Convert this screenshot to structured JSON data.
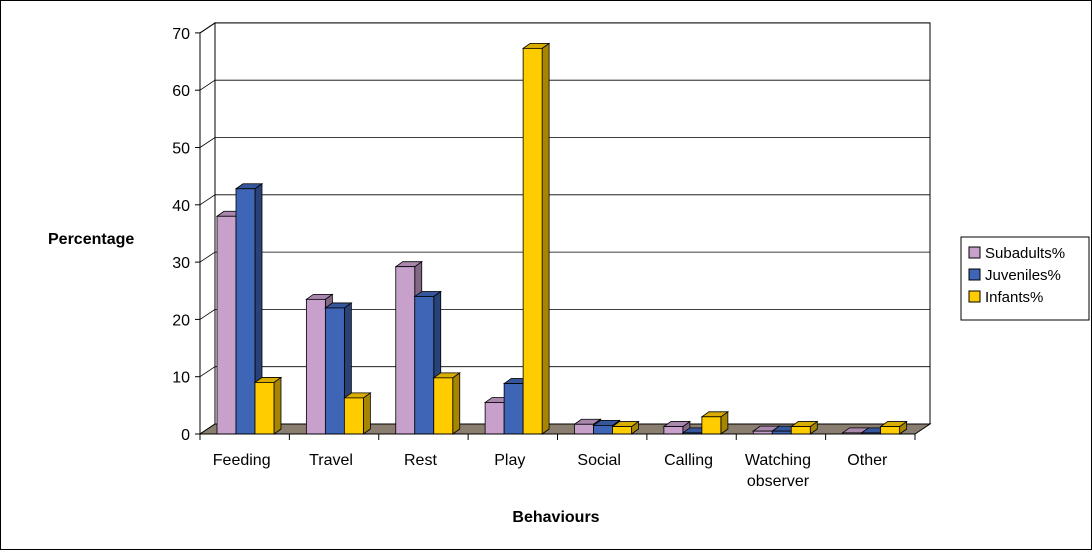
{
  "chart_data": {
    "type": "bar",
    "title": "",
    "xlabel": "Behaviours",
    "ylabel": "Percentage",
    "ylim": [
      0,
      70
    ],
    "yticks": [
      0,
      10,
      20,
      30,
      40,
      50,
      60,
      70
    ],
    "grid": true,
    "legend_position": "right",
    "categories": [
      [
        "Feeding"
      ],
      [
        "Travel"
      ],
      [
        "Rest"
      ],
      [
        "Play"
      ],
      [
        "Social"
      ],
      [
        "Calling"
      ],
      [
        "Watching",
        "observer"
      ],
      [
        "Other"
      ]
    ],
    "series": [
      {
        "name": "Subadults%",
        "color": "#C8A0CC",
        "values": [
          38,
          23.5,
          29.2,
          5.5,
          1.7,
          1.3,
          0.5,
          0.2
        ]
      },
      {
        "name": "Juveniles%",
        "color": "#3F65B7",
        "values": [
          42.8,
          22,
          24,
          8.8,
          1.5,
          0.2,
          0.5,
          0.2
        ]
      },
      {
        "name": "Infants%",
        "color": "#FFCC00",
        "values": [
          9,
          6.3,
          9.8,
          67.3,
          1.3,
          3,
          1.3,
          1.3
        ]
      }
    ]
  }
}
